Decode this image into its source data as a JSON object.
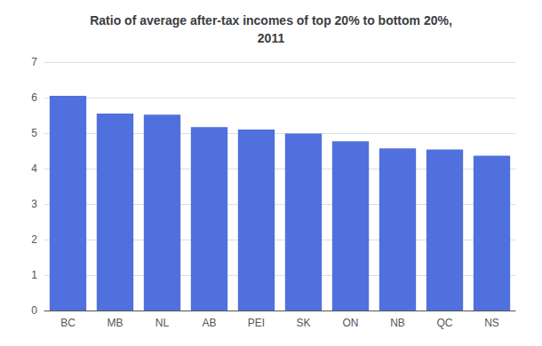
{
  "chart_data": {
    "type": "bar",
    "title": "Ratio of average after-tax incomes of top 20% to bottom 20%,\n2011",
    "categories": [
      "BC",
      "MB",
      "NL",
      "AB",
      "PEI",
      "SK",
      "ON",
      "NB",
      "QC",
      "NS"
    ],
    "values": [
      6.05,
      5.55,
      5.52,
      5.17,
      5.1,
      4.99,
      4.77,
      4.57,
      4.54,
      4.36
    ],
    "ylim": [
      0,
      7
    ],
    "yticks": [
      0,
      1,
      2,
      3,
      4,
      5,
      6,
      7
    ],
    "grid": true
  }
}
